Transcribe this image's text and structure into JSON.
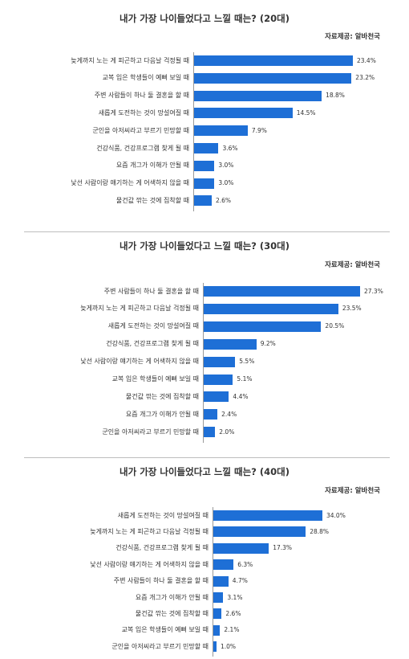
{
  "chart_data": [
    {
      "type": "bar",
      "orientation": "horizontal",
      "title": "내가 가장 나이들었다고 느낄 때는? (20대)",
      "source": "자료제공: 알바천국",
      "categories": [
        "늦게까지 노는 게 피곤하고 다음날 걱정될 때",
        "교복 입은 학생들이 예뻐 보일 때",
        "주변 사람들이 하나 둘 결혼을 할 때",
        "새롭게 도전하는 것이 망설여질 때",
        "군인을 아저씨라고 부르기 민망할 때",
        "건강식품, 건강프로그램 찾게 될 때",
        "요즘 개그가 이해가 안될 때",
        "낯선 사람이랑 얘기하는 게 어색하지 않을 때",
        "물건값 깎는 것에 집착할 때"
      ],
      "values": [
        23.4,
        23.2,
        18.8,
        14.5,
        7.9,
        3.6,
        3.0,
        3.0,
        2.6
      ],
      "value_labels": [
        "23.4%",
        "23.2%",
        "18.8%",
        "14.5%",
        "7.9%",
        "3.6%",
        "3.0%",
        "3.0%",
        "2.6%"
      ],
      "xlim": [
        0,
        30
      ],
      "grid": false,
      "bar_color": "#1e6fd6"
    },
    {
      "type": "bar",
      "orientation": "horizontal",
      "title": "내가 가장 나이들었다고 느낄 때는? (30대)",
      "source": "자료제공: 알바천국",
      "categories": [
        "주변 사람들이 하나 둘 결혼을 할 때",
        "늦게까지 노는 게 피곤하고 다음날 걱정될 때",
        "새롭게 도전하는 것이 망설여질 때",
        "건강식품, 건강프로그램 찾게 될 때",
        "낯선 사람이랑 얘기하는 게 어색하지 않을 때",
        "교복 입은 학생들이 예뻐 보일 때",
        "물건값 깎는 것에 집착할 때",
        "요즘 개그가 이해가 안될 때",
        "군인을 아저씨라고 부르기 민망할 때"
      ],
      "values": [
        27.3,
        23.5,
        20.5,
        9.2,
        5.5,
        5.1,
        4.4,
        2.4,
        2.0
      ],
      "value_labels": [
        "27.3%",
        "23.5%",
        "20.5%",
        "9.2%",
        "5.5%",
        "5.1%",
        "4.4%",
        "2.4%",
        "2.0%"
      ],
      "xlim": [
        0,
        30
      ],
      "grid": false,
      "bar_color": "#1e6fd6"
    },
    {
      "type": "bar",
      "orientation": "horizontal",
      "title": "내가 가장 나이들었다고 느낄 때는? (40대)",
      "source": "자료제공: 알바천국",
      "categories": [
        "새롭게 도전하는 것이 망설여질 때",
        "늦게까지 노는 게 피곤하고 다음날 걱정될 때",
        "건강식품, 건강프로그램 찾게 될 때",
        "낯선 사람이랑 얘기하는 게 어색하지 않을 때",
        "주변 사람들이 하나 둘 결혼을 할 때",
        "요즘 개그가 이해가 안될 때",
        "물건값 깎는 것에 집착할 때",
        "교복 입은 학생들이 예뻐 보일 때",
        "군인을 아저씨라고 부르기 민망할 때"
      ],
      "values": [
        34.0,
        28.8,
        17.3,
        6.3,
        4.7,
        3.1,
        2.6,
        2.1,
        1.0
      ],
      "value_labels": [
        "34.0%",
        "28.8%",
        "17.3%",
        "6.3%",
        "4.7%",
        "3.1%",
        "2.6%",
        "2.1%",
        "1.0%"
      ],
      "xlim": [
        0,
        40
      ],
      "grid": false,
      "bar_color": "#1e6fd6"
    }
  ]
}
